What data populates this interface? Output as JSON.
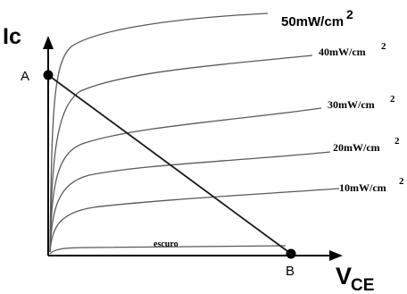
{
  "diagram": {
    "y_axis_label": "Ic",
    "x_axis_label_main": "V",
    "x_axis_label_sub": "CE",
    "point_a_label": "A",
    "point_b_label": "B",
    "curves": [
      {
        "label": "50mW/cm",
        "sup": "2"
      },
      {
        "label": "40mW/cm",
        "sup": "2"
      },
      {
        "label": "30mW/cm",
        "sup": "2"
      },
      {
        "label": "20mW/cm",
        "sup": "2"
      },
      {
        "label": "10mW/cm",
        "sup": "2"
      }
    ],
    "dark_label": "escuro",
    "colors": {
      "curve": "#5a5a5a",
      "axis": "#000000",
      "load_line": "#1a1a1a"
    }
  }
}
